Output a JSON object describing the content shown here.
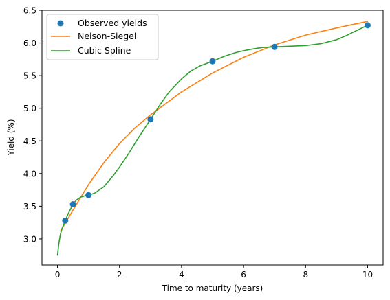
{
  "chart_data": {
    "type": "line",
    "title": "",
    "xlabel": "Time to maturity (years)",
    "ylabel": "Yield (%)",
    "xlim": [
      -0.5,
      10.5
    ],
    "ylim": [
      2.6,
      6.5
    ],
    "xticks": [
      0,
      2,
      4,
      6,
      8,
      10
    ],
    "yticks": [
      3.0,
      3.5,
      4.0,
      4.5,
      5.0,
      5.5,
      6.0,
      6.5
    ],
    "xtick_labels": [
      "0",
      "2",
      "4",
      "6",
      "8",
      "10"
    ],
    "ytick_labels": [
      "3.0",
      "3.5",
      "4.0",
      "4.5",
      "5.0",
      "5.5",
      "6.0",
      "6.5"
    ],
    "grid": false,
    "legend_position": "top-left",
    "series": [
      {
        "name": "Observed yields",
        "kind": "scatter",
        "color": "#1f77b4",
        "x": [
          0.25,
          0.5,
          1,
          3,
          5,
          7,
          10
        ],
        "y": [
          3.28,
          3.53,
          3.67,
          4.83,
          5.72,
          5.94,
          6.27
        ]
      },
      {
        "name": "Nelson-Siegel",
        "kind": "line",
        "color": "#ff7f0e",
        "x": [
          0.1,
          0.25,
          0.5,
          1,
          1.5,
          2,
          2.5,
          3,
          4,
          5,
          6,
          7,
          8,
          9,
          10
        ],
        "y": [
          3.12,
          3.24,
          3.44,
          3.83,
          4.17,
          4.46,
          4.7,
          4.9,
          5.25,
          5.54,
          5.78,
          5.97,
          6.12,
          6.23,
          6.33
        ]
      },
      {
        "name": "Cubic Spline",
        "kind": "line",
        "color": "#2ca02c",
        "x": [
          0,
          0.05,
          0.1,
          0.15,
          0.25,
          0.35,
          0.5,
          0.6,
          0.75,
          0.9,
          1,
          1.2,
          1.5,
          1.8,
          2,
          2.3,
          2.6,
          3,
          3.3,
          3.6,
          4,
          4.3,
          4.6,
          5,
          5.4,
          5.8,
          6.2,
          6.6,
          7,
          7.5,
          8,
          8.5,
          9,
          9.3,
          9.6,
          10
        ],
        "y": [
          2.75,
          2.95,
          3.08,
          3.16,
          3.28,
          3.39,
          3.53,
          3.59,
          3.64,
          3.66,
          3.67,
          3.7,
          3.8,
          3.97,
          4.1,
          4.31,
          4.54,
          4.83,
          5.05,
          5.25,
          5.45,
          5.57,
          5.65,
          5.72,
          5.8,
          5.86,
          5.9,
          5.93,
          5.94,
          5.95,
          5.96,
          5.99,
          6.05,
          6.11,
          6.18,
          6.27
        ]
      }
    ]
  }
}
